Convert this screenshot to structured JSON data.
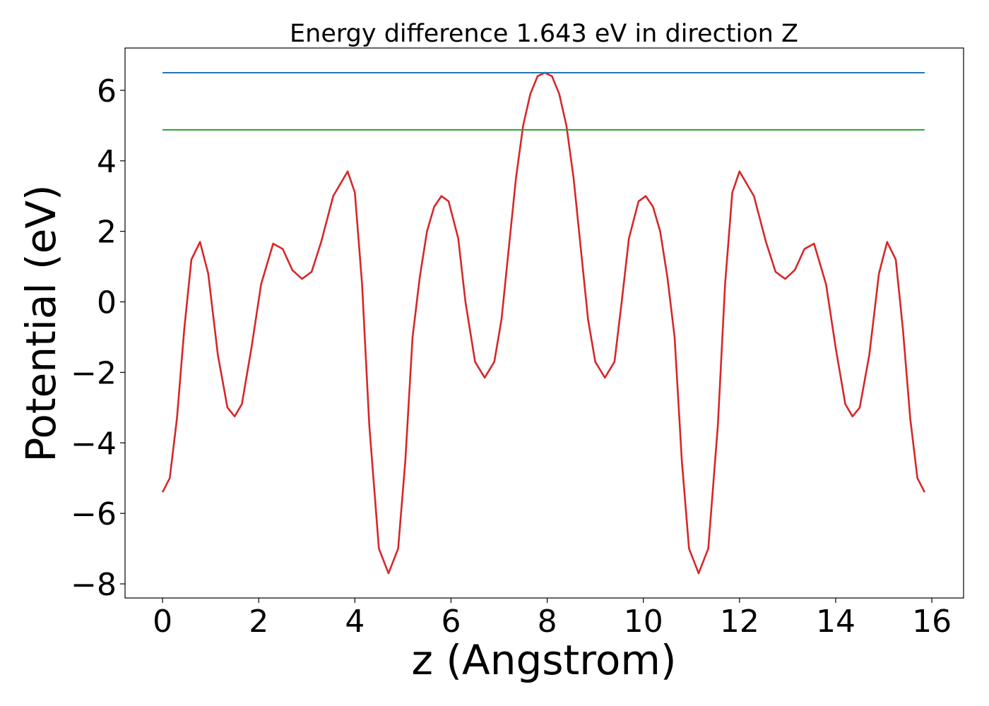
{
  "chart_data": {
    "type": "line",
    "title": "Energy difference 1.643 eV in direction Z",
    "xlabel": "z (Angstrom)",
    "ylabel": "Potential (eV)",
    "xlim": [
      -0.78,
      16.66
    ],
    "ylim": [
      -8.4,
      7.2
    ],
    "xticks": [
      0,
      2,
      4,
      6,
      8,
      10,
      12,
      14,
      16
    ],
    "yticks": [
      -8,
      -6,
      -4,
      -2,
      0,
      2,
      4,
      6
    ],
    "xtick_labels": [
      "0",
      "2",
      "4",
      "6",
      "8",
      "10",
      "12",
      "14",
      "16"
    ],
    "ytick_labels": [
      "−8",
      "−6",
      "−4",
      "−2",
      "0",
      "2",
      "4",
      "6"
    ],
    "grid": false,
    "legend": "none",
    "series": [
      {
        "color": "#d62728",
        "points": [
          [
            0.0,
            -5.4
          ],
          [
            0.15,
            -5.0
          ],
          [
            0.3,
            -3.3
          ],
          [
            0.45,
            -0.8
          ],
          [
            0.6,
            1.2
          ],
          [
            0.78,
            1.7
          ],
          [
            0.95,
            0.8
          ],
          [
            1.15,
            -1.5
          ],
          [
            1.35,
            -3.0
          ],
          [
            1.5,
            -3.25
          ],
          [
            1.65,
            -2.9
          ],
          [
            1.85,
            -1.3
          ],
          [
            2.05,
            0.5
          ],
          [
            2.3,
            1.65
          ],
          [
            2.5,
            1.5
          ],
          [
            2.7,
            0.9
          ],
          [
            2.9,
            0.65
          ],
          [
            3.1,
            0.85
          ],
          [
            3.3,
            1.7
          ],
          [
            3.55,
            3.0
          ],
          [
            3.85,
            3.7
          ],
          [
            4.0,
            3.1
          ],
          [
            4.15,
            0.5
          ],
          [
            4.3,
            -3.5
          ],
          [
            4.5,
            -7.0
          ],
          [
            4.7,
            -7.7
          ],
          [
            4.9,
            -7.0
          ],
          [
            5.05,
            -4.5
          ],
          [
            5.2,
            -1.0
          ],
          [
            5.35,
            0.7
          ],
          [
            5.5,
            2.0
          ],
          [
            5.65,
            2.7
          ],
          [
            5.8,
            3.0
          ],
          [
            5.95,
            2.85
          ],
          [
            6.15,
            1.8
          ],
          [
            6.3,
            0.0
          ],
          [
            6.5,
            -1.7
          ],
          [
            6.7,
            -2.15
          ],
          [
            6.9,
            -1.7
          ],
          [
            7.05,
            -0.5
          ],
          [
            7.2,
            1.5
          ],
          [
            7.35,
            3.5
          ],
          [
            7.5,
            5.0
          ],
          [
            7.65,
            5.9
          ],
          [
            7.8,
            6.4
          ],
          [
            7.95,
            6.5
          ],
          [
            8.1,
            6.4
          ],
          [
            8.25,
            5.9
          ],
          [
            8.4,
            5.0
          ],
          [
            8.55,
            3.5
          ],
          [
            8.7,
            1.5
          ],
          [
            8.85,
            -0.5
          ],
          [
            9.0,
            -1.7
          ],
          [
            9.2,
            -2.15
          ],
          [
            9.4,
            -1.7
          ],
          [
            9.55,
            0.0
          ],
          [
            9.7,
            1.8
          ],
          [
            9.9,
            2.85
          ],
          [
            10.05,
            3.0
          ],
          [
            10.2,
            2.7
          ],
          [
            10.35,
            2.0
          ],
          [
            10.5,
            0.7
          ],
          [
            10.65,
            -1.0
          ],
          [
            10.8,
            -4.5
          ],
          [
            10.95,
            -7.0
          ],
          [
            11.15,
            -7.7
          ],
          [
            11.35,
            -7.0
          ],
          [
            11.55,
            -3.5
          ],
          [
            11.7,
            0.5
          ],
          [
            11.85,
            3.1
          ],
          [
            12.0,
            3.7
          ],
          [
            12.3,
            3.0
          ],
          [
            12.55,
            1.7
          ],
          [
            12.75,
            0.85
          ],
          [
            12.95,
            0.65
          ],
          [
            13.15,
            0.9
          ],
          [
            13.35,
            1.5
          ],
          [
            13.55,
            1.65
          ],
          [
            13.8,
            0.5
          ],
          [
            14.0,
            -1.3
          ],
          [
            14.2,
            -2.9
          ],
          [
            14.35,
            -3.25
          ],
          [
            14.5,
            -3.0
          ],
          [
            14.7,
            -1.5
          ],
          [
            14.9,
            0.8
          ],
          [
            15.07,
            1.7
          ],
          [
            15.25,
            1.2
          ],
          [
            15.4,
            -0.8
          ],
          [
            15.55,
            -3.3
          ],
          [
            15.7,
            -5.0
          ],
          [
            15.85,
            -5.4
          ]
        ]
      },
      {
        "color": "#1f77b4",
        "points": [
          [
            0.0,
            6.5
          ],
          [
            15.85,
            6.5
          ]
        ]
      },
      {
        "color": "#2ca02c",
        "points": [
          [
            0.0,
            4.88
          ],
          [
            15.85,
            4.88
          ]
        ]
      }
    ]
  }
}
